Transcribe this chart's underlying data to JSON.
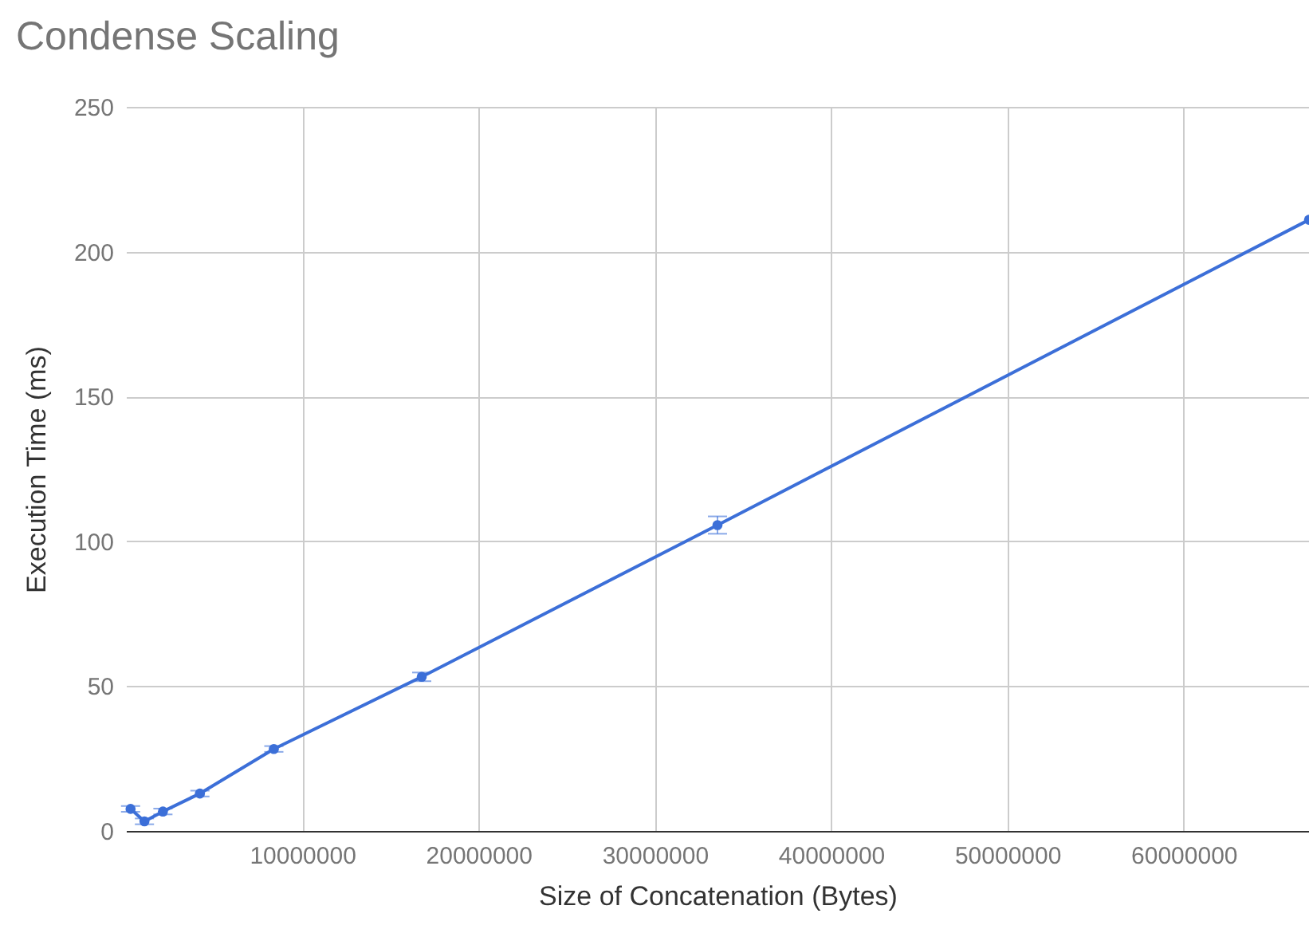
{
  "chart_data": {
    "type": "line",
    "title": "Condense Scaling",
    "xlabel": "Size of Concatenation (Bytes)",
    "ylabel": "Execution Time (ms)",
    "x": [
      262144,
      1048576,
      2097152,
      4194304,
      8388608,
      16777216,
      33554432,
      67108864
    ],
    "series": [
      {
        "color": "#3c6fd8",
        "values": [
          7.6,
          3.3,
          6.7,
          12.9,
          28.3,
          53.2,
          105.6,
          211
        ],
        "errors": [
          1,
          1,
          1,
          1,
          1,
          1.5,
          3,
          null
        ]
      }
    ],
    "xlim": [
      0,
      67108864
    ],
    "xticks": [
      10000000,
      20000000,
      30000000,
      40000000,
      50000000,
      60000000
    ],
    "ylim": [
      0,
      250
    ],
    "yticks": [
      0,
      50,
      100,
      150,
      200,
      250
    ],
    "grid": true,
    "marker": "circle",
    "line_style": "solid"
  }
}
